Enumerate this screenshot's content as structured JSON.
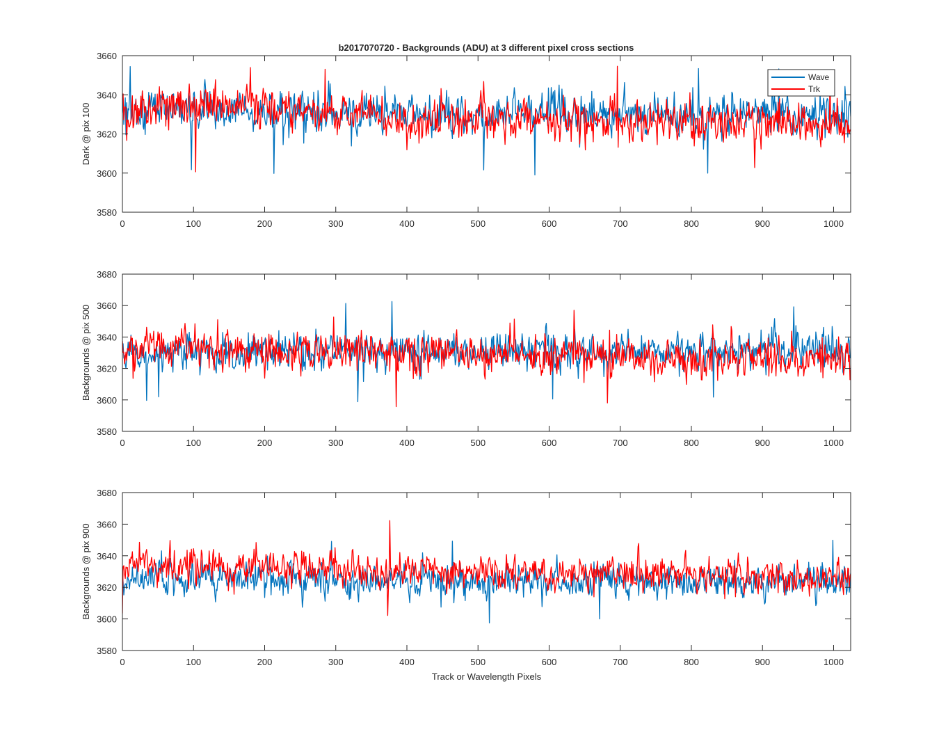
{
  "figure": {
    "title": "b2017070720 - Backgrounds (ADU) at 3 different pixel cross sections"
  },
  "legend": {
    "entries": [
      {
        "label": "Wave",
        "color": "#0072BD"
      },
      {
        "label": "Trk",
        "color": "#FF0000"
      }
    ]
  },
  "chart_data": [
    {
      "type": "line",
      "title": "b2017070720 - Backgrounds (ADU) at 3 different pixel cross sections",
      "xlabel": "",
      "ylabel": "Dark @ pix 100",
      "xlim": [
        0,
        1024
      ],
      "ylim": [
        3580,
        3660
      ],
      "xticks": [
        0,
        100,
        200,
        300,
        400,
        500,
        600,
        700,
        800,
        900,
        1000
      ],
      "yticks": [
        3580,
        3600,
        3620,
        3640,
        3660
      ],
      "grid": false,
      "legend_position": "top-right",
      "series": [
        {
          "name": "Wave",
          "color": "#0072BD",
          "sampled_x": [
            0,
            100,
            200,
            300,
            400,
            500,
            600,
            700,
            800,
            900,
            1000,
            1024
          ],
          "trend": [
            3632,
            3632,
            3631,
            3630,
            3630,
            3630,
            3630,
            3630,
            3630,
            3630,
            3630,
            3630
          ],
          "noise": 7,
          "min": 3599,
          "max": 3656
        },
        {
          "name": "Trk",
          "color": "#FF0000",
          "sampled_x": [
            0,
            100,
            200,
            300,
            400,
            500,
            600,
            700,
            800,
            900,
            1000,
            1024
          ],
          "trend": [
            3631,
            3636,
            3633,
            3630,
            3628,
            3628,
            3627,
            3627,
            3626,
            3625,
            3625,
            3625
          ],
          "noise": 7,
          "min": 3599,
          "max": 3655
        }
      ]
    },
    {
      "type": "line",
      "xlabel": "",
      "ylabel": "Backgrounds @ pix 500",
      "xlim": [
        0,
        1024
      ],
      "ylim": [
        3580,
        3680
      ],
      "xticks": [
        0,
        100,
        200,
        300,
        400,
        500,
        600,
        700,
        800,
        900,
        1000
      ],
      "yticks": [
        3580,
        3600,
        3620,
        3640,
        3660,
        3680
      ],
      "grid": false,
      "series": [
        {
          "name": "Wave",
          "color": "#0072BD",
          "sampled_x": [
            0,
            100,
            200,
            300,
            400,
            500,
            600,
            700,
            800,
            900,
            1000,
            1024
          ],
          "trend": [
            3630,
            3630,
            3631,
            3631,
            3631,
            3631,
            3631,
            3631,
            3632,
            3632,
            3632,
            3632
          ],
          "noise": 8,
          "min": 3598,
          "max": 3663
        },
        {
          "name": "Trk",
          "color": "#FF0000",
          "sampled_x": [
            0,
            100,
            200,
            300,
            400,
            500,
            600,
            700,
            800,
            900,
            1000,
            1024
          ],
          "trend": [
            3634,
            3634,
            3632,
            3631,
            3630,
            3629,
            3629,
            3628,
            3627,
            3627,
            3626,
            3626
          ],
          "noise": 8,
          "min": 3595,
          "max": 3658
        }
      ]
    },
    {
      "type": "line",
      "xlabel": "Track or Wavelength Pixels",
      "ylabel": "Backgrounds @ pix 900",
      "xlim": [
        0,
        1024
      ],
      "ylim": [
        3580,
        3680
      ],
      "xticks": [
        0,
        100,
        200,
        300,
        400,
        500,
        600,
        700,
        800,
        900,
        1000
      ],
      "yticks": [
        3580,
        3600,
        3620,
        3640,
        3660,
        3680
      ],
      "grid": false,
      "series": [
        {
          "name": "Wave",
          "color": "#0072BD",
          "sampled_x": [
            0,
            100,
            200,
            300,
            400,
            500,
            600,
            700,
            800,
            900,
            1000,
            1024
          ],
          "trend": [
            3625,
            3625,
            3625,
            3624,
            3624,
            3624,
            3624,
            3624,
            3624,
            3624,
            3624,
            3624
          ],
          "noise": 7,
          "min": 3597,
          "max": 3653
        },
        {
          "name": "Trk",
          "color": "#FF0000",
          "sampled_x": [
            0,
            100,
            200,
            300,
            400,
            500,
            600,
            700,
            800,
            900,
            1000,
            1024
          ],
          "trend": [
            3635,
            3634,
            3632,
            3631,
            3630,
            3630,
            3629,
            3629,
            3628,
            3627,
            3626,
            3626
          ],
          "noise": 7,
          "min": 3601,
          "max": 3664
        }
      ]
    }
  ]
}
